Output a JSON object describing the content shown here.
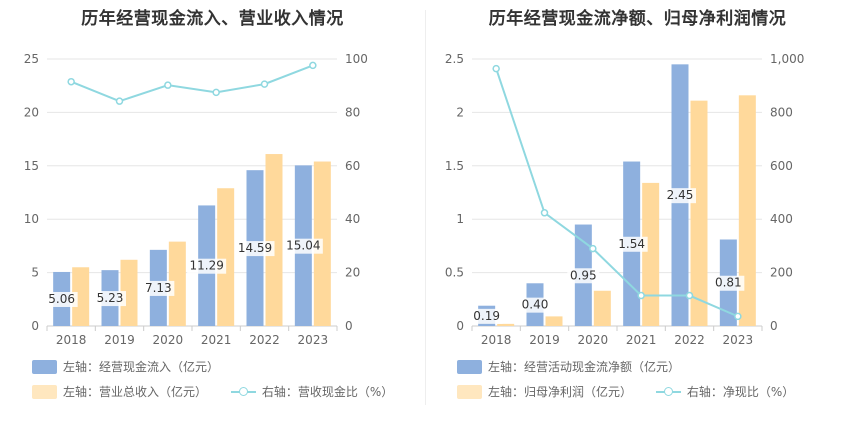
{
  "chart_data": [
    {
      "type": "bar",
      "title": "历年经营现金流入、营业收入情况",
      "categories": [
        "2018",
        "2019",
        "2020",
        "2021",
        "2022",
        "2023"
      ],
      "series": [
        {
          "name": "左轴：经营现金流入（亿元）",
          "axis": "left",
          "kind": "bar",
          "color": "#8eb0de",
          "values": [
            5.06,
            5.23,
            7.13,
            11.29,
            14.59,
            15.04
          ],
          "labels": [
            "5.06",
            "5.23",
            "7.13",
            "11.29",
            "14.59",
            "15.04"
          ]
        },
        {
          "name": "左轴：营业总收入（亿元）",
          "axis": "left",
          "kind": "bar",
          "color": "#ffd99b",
          "values": [
            5.5,
            6.2,
            7.9,
            12.9,
            16.1,
            15.4
          ]
        },
        {
          "name": "右轴：营收现金比（%）",
          "axis": "right",
          "kind": "line",
          "color": "#8fd8e0",
          "values": [
            91.5,
            84.2,
            90.2,
            87.5,
            90.6,
            97.6
          ]
        }
      ],
      "left_axis": {
        "range": [
          0,
          25
        ],
        "ticks": [
          "0",
          "5",
          "10",
          "15",
          "20",
          "25"
        ],
        "tick_values": [
          0,
          5,
          10,
          15,
          20,
          25
        ]
      },
      "right_axis": {
        "range": [
          0,
          100
        ],
        "ticks": [
          "0",
          "20",
          "40",
          "60",
          "80",
          "100"
        ],
        "tick_values": [
          0,
          20,
          40,
          60,
          80,
          100
        ]
      },
      "grid": true,
      "legend_position": "bottom-left"
    },
    {
      "type": "bar",
      "title": "历年经营现金流净额、归母净利润情况",
      "categories": [
        "2018",
        "2019",
        "2020",
        "2021",
        "2022",
        "2023"
      ],
      "series": [
        {
          "name": "左轴：经营活动现金流净额（亿元）",
          "axis": "left",
          "kind": "bar",
          "color": "#8eb0de",
          "values": [
            0.19,
            0.4,
            0.95,
            1.54,
            2.45,
            0.81
          ],
          "labels": [
            "0.19",
            "0.40",
            "0.95",
            "1.54",
            "2.45",
            "0.81"
          ]
        },
        {
          "name": "左轴：归母净利润（亿元）",
          "axis": "left",
          "kind": "bar",
          "color": "#ffd99b",
          "values": [
            0.02,
            0.09,
            0.33,
            1.34,
            2.11,
            2.16
          ]
        },
        {
          "name": "右轴：净现比（%）",
          "axis": "right",
          "kind": "line",
          "color": "#8fd8e0",
          "values": [
            964,
            424,
            290,
            114,
            114,
            36
          ]
        }
      ],
      "left_axis": {
        "range": [
          0,
          2.5
        ],
        "ticks": [
          "0",
          "0.5",
          "1",
          "1.5",
          "2",
          "2.5"
        ],
        "tick_values": [
          0,
          0.5,
          1,
          1.5,
          2,
          2.5
        ]
      },
      "right_axis": {
        "range": [
          0,
          1000
        ],
        "ticks": [
          "0",
          "200",
          "400",
          "600",
          "800",
          "1,000"
        ],
        "tick_values": [
          0,
          200,
          400,
          600,
          800,
          1000
        ]
      },
      "grid": true,
      "legend_position": "bottom-left"
    }
  ]
}
